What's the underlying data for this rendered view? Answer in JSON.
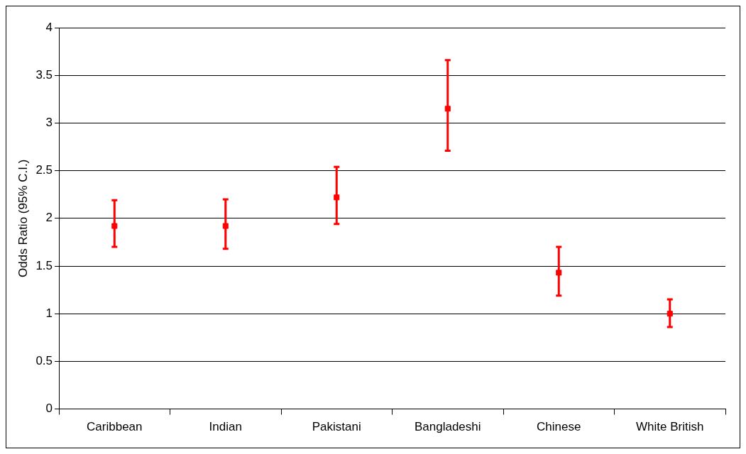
{
  "chart_data": {
    "type": "scatter",
    "ylabel": "Odds Ratio (95% C.I.)",
    "categories": [
      "Caribbean",
      "Indian",
      "Pakistani",
      "Bangladeshi",
      "Chinese",
      "White British"
    ],
    "values": [
      1.92,
      1.92,
      2.22,
      3.15,
      1.43,
      1.0
    ],
    "errors": [
      [
        1.7,
        2.19
      ],
      [
        1.68,
        2.2
      ],
      [
        1.94,
        2.54
      ],
      [
        2.71,
        3.66
      ],
      [
        1.19,
        1.7
      ],
      [
        0.86,
        1.15
      ]
    ],
    "color": "#ff0000",
    "marker": "square",
    "ylim": [
      0,
      4
    ],
    "yticks": [
      0,
      0.5,
      1,
      1.5,
      2,
      2.5,
      3,
      3.5,
      4
    ],
    "grid": "y",
    "legend": false
  }
}
